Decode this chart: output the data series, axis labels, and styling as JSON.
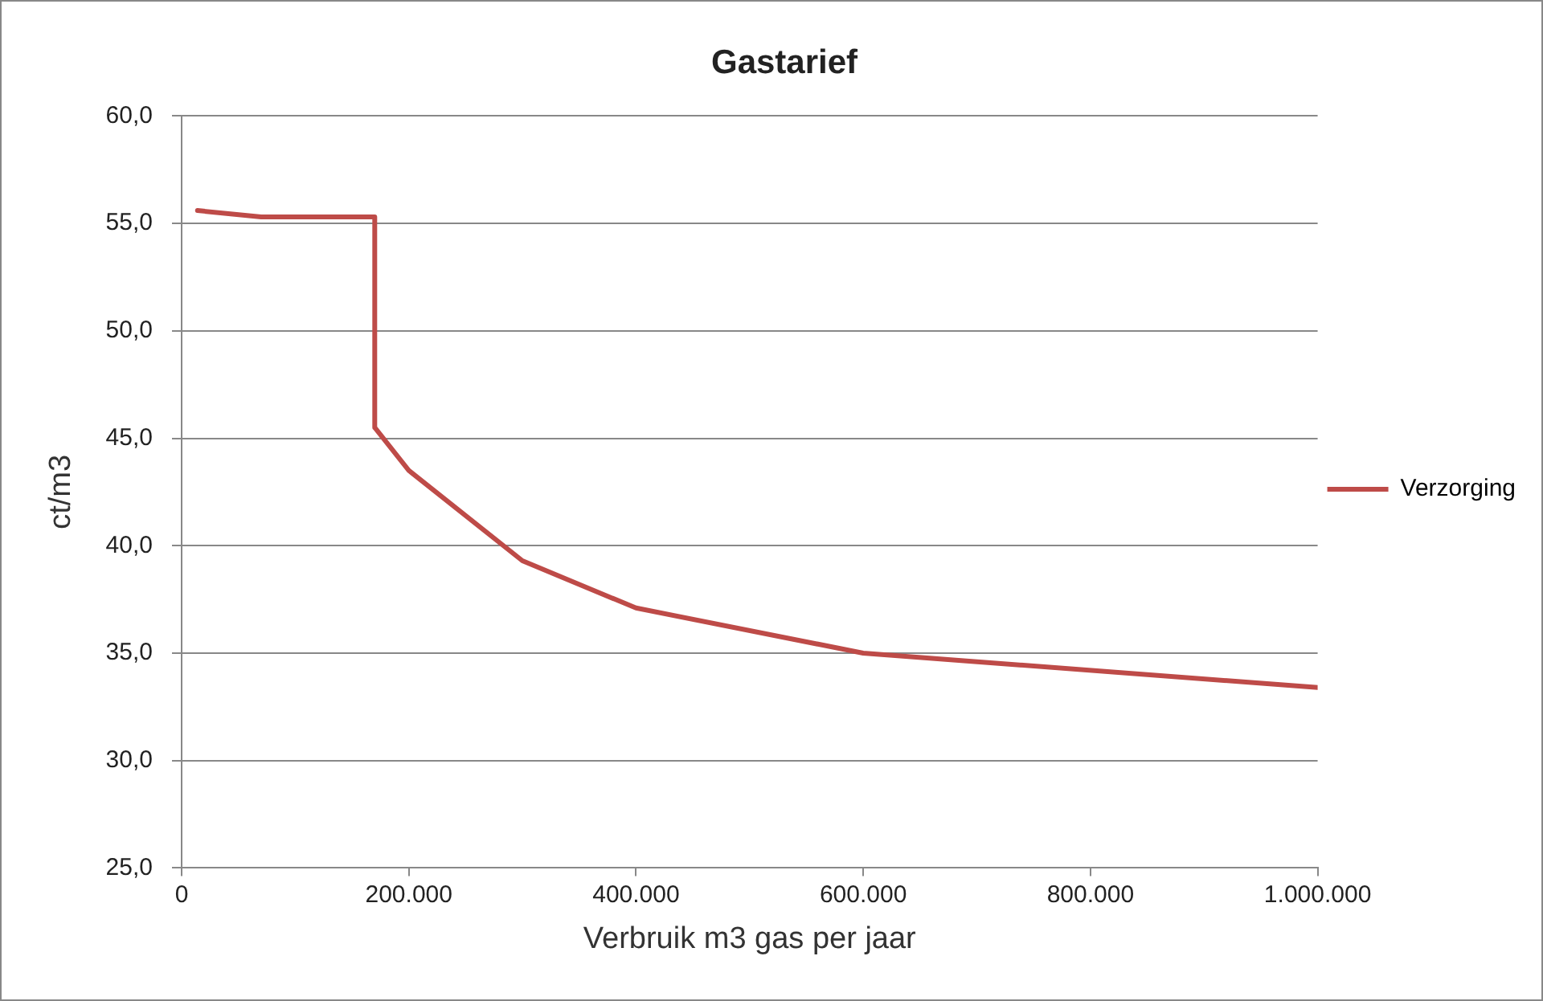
{
  "chart_data": {
    "type": "line",
    "title": "Gastarief",
    "xlabel": "Verbruik m3 gas per jaar",
    "ylabel": "ct/m3",
    "x": [
      14000,
      70000,
      170000,
      170000,
      200000,
      300000,
      400000,
      600000,
      1000000
    ],
    "series": [
      {
        "name": "Verzorging",
        "color": "#be4b48",
        "values": [
          55.6,
          55.3,
          55.3,
          45.5,
          43.5,
          39.3,
          37.1,
          35.0,
          33.4
        ]
      }
    ],
    "xlim": [
      0,
      1000000
    ],
    "xticks": [
      0,
      {
        "value": 200000,
        "label": "200.000"
      },
      {
        "value": 400000,
        "label": "400.000"
      },
      {
        "value": 600000,
        "label": "600.000"
      },
      {
        "value": 800000,
        "label": "800.000"
      },
      {
        "value": 1000000,
        "label": "1.000.000"
      }
    ],
    "ylim": [
      25,
      60
    ],
    "yticks": [
      {
        "value": 25,
        "label": "25,0"
      },
      {
        "value": 30,
        "label": "30,0"
      },
      {
        "value": 35,
        "label": "35,0"
      },
      {
        "value": 40,
        "label": "40,0"
      },
      {
        "value": 45,
        "label": "45,0"
      },
      {
        "value": 50,
        "label": "50,0"
      },
      {
        "value": 55,
        "label": "55,0"
      },
      {
        "value": 60,
        "label": "60,0"
      }
    ],
    "grid": "y",
    "legend": "right",
    "marker": "none",
    "line_style": "solid"
  }
}
